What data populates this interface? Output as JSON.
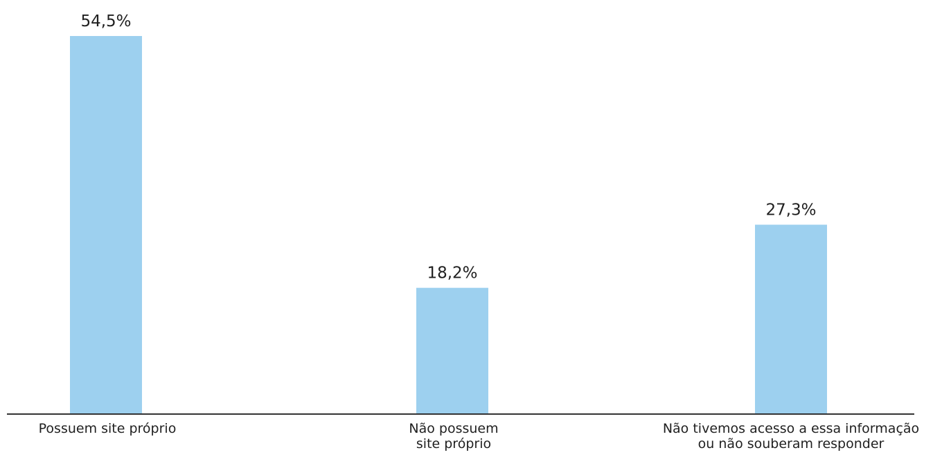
{
  "chart_data": {
    "type": "bar",
    "categories": [
      [
        "Possuem site próprio"
      ],
      [
        "Não possuem",
        "site próprio"
      ],
      [
        "Não tivemos acesso a essa informação",
        "ou não souberam responder"
      ]
    ],
    "values": [
      54.5,
      18.2,
      27.3
    ],
    "value_labels": [
      "54,5%",
      "18,2%",
      "27,3%"
    ],
    "unit": "%",
    "title": "",
    "xlabel": "",
    "ylabel": "",
    "ylim": [
      0,
      60
    ],
    "grid": false,
    "legend": "none"
  },
  "colors": {
    "bar": "#9dd0ef",
    "axis": "#333333",
    "text": "#1f1f1f"
  }
}
